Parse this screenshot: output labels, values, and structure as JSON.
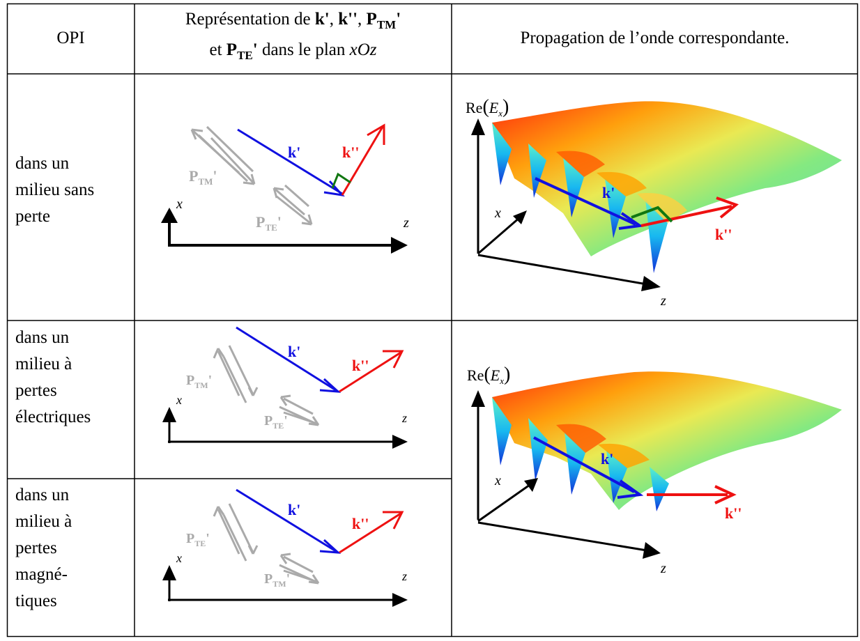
{
  "header": {
    "col1": "OPI",
    "col2_part1": "Représentation de ",
    "col2_k1": "k'",
    "col2_sep1": ", ",
    "col2_k2": "k''",
    "col2_sep2": ", ",
    "col2_P": "P",
    "col2_TM": "TM",
    "col2_prime1": "'",
    "col2_line2_pre": "et ",
    "col2_TE": "TE",
    "col2_prime2": "'",
    "col2_plane": " dans le plan ",
    "col2_xOz": "xOz",
    "col3": "Propagation de l’onde correspondante."
  },
  "rows": {
    "lossless": [
      "dans un",
      "milieu sans",
      "perte"
    ],
    "electric": [
      "dans un",
      "milieu à",
      "pertes",
      "électriques"
    ],
    "magnetic": [
      "dans un",
      "milieu à",
      "pertes",
      "magné-",
      "tiques"
    ]
  },
  "labels": {
    "k1": "k'",
    "k2": "k''",
    "P": "P",
    "TM": "TM",
    "TE": "TE",
    "prime": "'",
    "x": "x",
    "z": "z",
    "re": "Re",
    "E": "E",
    "Esub": "x"
  },
  "colors": {
    "k1": "#1010e0",
    "k2": "#ee1111",
    "perp": "#117711",
    "poynting": "#aaaaaa",
    "axes": "#000000"
  }
}
